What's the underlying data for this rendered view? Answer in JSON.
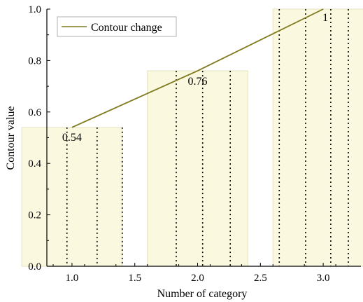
{
  "chart_data": {
    "type": "bar+line",
    "xlabel": "Number of category",
    "ylabel": "Contour value",
    "xlim": [
      0.8,
      3.3
    ],
    "ylim": [
      0.0,
      1.0
    ],
    "x_ticks": [
      1.0,
      1.5,
      2.0,
      2.5,
      3.0
    ],
    "x_tick_labels": [
      "1.0",
      "1.5",
      "2.0",
      "2.5",
      "3.0"
    ],
    "y_ticks": [
      0.0,
      0.2,
      0.4,
      0.6,
      0.8,
      1.0
    ],
    "y_tick_labels": [
      "0.0",
      "0.2",
      "0.4",
      "0.6",
      "0.8",
      "1.0"
    ],
    "bars": [
      {
        "x": 1,
        "value": 0.54,
        "label": "0.54",
        "dividers_x": [
          0.96,
          1.2,
          1.4
        ]
      },
      {
        "x": 2,
        "value": 0.76,
        "label": "0.76",
        "dividers_x": [
          1.83,
          2.04,
          2.26
        ]
      },
      {
        "x": 3,
        "value": 1.0,
        "label": "1",
        "dividers_x": [
          2.65,
          2.86,
          3.06,
          3.2
        ]
      }
    ],
    "bar_width": 0.8,
    "series": [
      {
        "name": "Contour change",
        "x": [
          1,
          2,
          3
        ],
        "values": [
          0.54,
          0.76,
          1.0
        ]
      }
    ],
    "legend_position": "top-left",
    "grid": false,
    "colors": {
      "bar_fill": "#fbf8e0",
      "bar_edge": "#e6e2c2",
      "line": "#7f7a1f",
      "divider": "#000000"
    }
  }
}
